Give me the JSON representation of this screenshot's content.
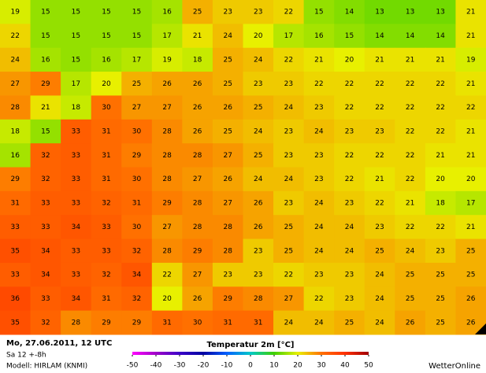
{
  "map": {
    "rows": [
      [
        19,
        15,
        15,
        15,
        15,
        16,
        25,
        23,
        23,
        22,
        15,
        14,
        13,
        13,
        13,
        21
      ],
      [
        22,
        15,
        15,
        15,
        15,
        17,
        21,
        24,
        20,
        17,
        16,
        15,
        14,
        14,
        14,
        21
      ],
      [
        24,
        16,
        15,
        16,
        17,
        19,
        18,
        25,
        24,
        22,
        21,
        20,
        21,
        21,
        21,
        19
      ],
      [
        27,
        29,
        17,
        20,
        25,
        26,
        26,
        25,
        23,
        23,
        22,
        22,
        22,
        22,
        22,
        21
      ],
      [
        28,
        21,
        18,
        30,
        27,
        27,
        26,
        26,
        25,
        24,
        23,
        22,
        22,
        22,
        22,
        22
      ],
      [
        18,
        15,
        33,
        31,
        30,
        28,
        26,
        25,
        24,
        23,
        24,
        23,
        23,
        22,
        22,
        21
      ],
      [
        16,
        32,
        33,
        31,
        29,
        28,
        28,
        27,
        25,
        23,
        23,
        22,
        22,
        22,
        21,
        21
      ],
      [
        29,
        32,
        33,
        31,
        30,
        28,
        27,
        26,
        24,
        24,
        23,
        22,
        21,
        22,
        20,
        20
      ],
      [
        31,
        33,
        33,
        32,
        31,
        29,
        28,
        27,
        26,
        23,
        24,
        23,
        22,
        21,
        18,
        17
      ],
      [
        33,
        33,
        34,
        33,
        30,
        27,
        28,
        28,
        26,
        25,
        24,
        24,
        23,
        22,
        22,
        21
      ],
      [
        35,
        34,
        33,
        33,
        32,
        28,
        29,
        28,
        23,
        25,
        24,
        24,
        25,
        24,
        23,
        25
      ],
      [
        33,
        34,
        33,
        32,
        34,
        22,
        27,
        23,
        23,
        22,
        23,
        23,
        24,
        25,
        25,
        25
      ],
      [
        36,
        33,
        34,
        31,
        32,
        20,
        26,
        29,
        28,
        27,
        22,
        23,
        24,
        25,
        25,
        26
      ],
      [
        35,
        32,
        28,
        29,
        29,
        31,
        30,
        31,
        31,
        24,
        24,
        25,
        24,
        26,
        25,
        26
      ]
    ]
  },
  "legend": {
    "title": "Temperatur 2m [°C]",
    "ticks": [
      -50,
      -40,
      -30,
      -20,
      -10,
      0,
      10,
      20,
      30,
      40,
      50
    ],
    "colors": [
      "#ff00ff",
      "#a000c8",
      "#3c00c8",
      "#0000a0",
      "#0060ff",
      "#00c8c8",
      "#40d000",
      "#e8f000",
      "#ff7000",
      "#ff3000",
      "#a00000"
    ]
  },
  "footer": {
    "date": "Mo, 27.06.2011, 12 UTC",
    "run": "Sa 12 +-8h",
    "model": "Modell: HIRLAM (KNMI)",
    "brand": "WetterOnline"
  }
}
